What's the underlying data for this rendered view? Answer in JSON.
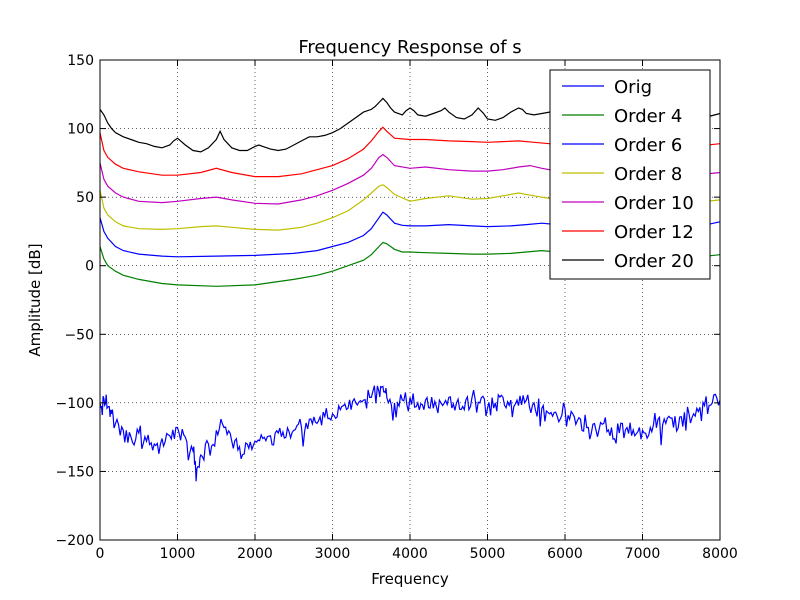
{
  "chart_data": {
    "type": "line",
    "title": "Frequency Response of s",
    "xlabel": "Frequency",
    "ylabel": "Amplitude [dB]",
    "xlim": [
      0,
      8000
    ],
    "ylim": [
      -200,
      150
    ],
    "xticks": [
      0,
      1000,
      2000,
      3000,
      4000,
      5000,
      6000,
      7000,
      8000
    ],
    "yticks": [
      -200,
      -150,
      -100,
      -50,
      0,
      50,
      100,
      150
    ],
    "grid": true,
    "legend_position": "top-right",
    "series": [
      {
        "name": "Orig",
        "color": "#0000ff",
        "noisy": true,
        "x": [
          0,
          50,
          100,
          150,
          200,
          300,
          400,
          500,
          600,
          700,
          800,
          900,
          1000,
          1100,
          1200,
          1250,
          1300,
          1400,
          1500,
          1600,
          1700,
          1800,
          1900,
          2000,
          2100,
          2200,
          2300,
          2400,
          2500,
          2600,
          2700,
          2800,
          2900,
          3000,
          3100,
          3200,
          3300,
          3400,
          3500,
          3600,
          3650,
          3700,
          3800,
          3900,
          4000,
          4100,
          4200,
          4300,
          4400,
          4500,
          4600,
          4700,
          4800,
          4900,
          5000,
          5100,
          5200,
          5300,
          5400,
          5500,
          5600,
          5700,
          5800,
          5900,
          6000,
          6100,
          6200,
          6300,
          6400,
          6500,
          6600,
          6700,
          6800,
          6900,
          7000,
          7100,
          7200,
          7300,
          7400,
          7500,
          7600,
          7700,
          7800,
          7900,
          8000
        ],
        "y": [
          -100,
          -97,
          -103,
          -108,
          -115,
          -120,
          -125,
          -122,
          -128,
          -130,
          -126,
          -124,
          -118,
          -125,
          -135,
          -148,
          -138,
          -130,
          -120,
          -118,
          -128,
          -132,
          -130,
          -128,
          -126,
          -124,
          -122,
          -125,
          -120,
          -118,
          -112,
          -115,
          -110,
          -108,
          -105,
          -104,
          -100,
          -98,
          -96,
          -92,
          -88,
          -96,
          -100,
          -98,
          -96,
          -100,
          -98,
          -104,
          -100,
          -96,
          -100,
          -105,
          -96,
          -100,
          -104,
          -100,
          -96,
          -98,
          -102,
          -98,
          -100,
          -104,
          -108,
          -110,
          -104,
          -108,
          -112,
          -118,
          -120,
          -115,
          -118,
          -122,
          -118,
          -124,
          -120,
          -118,
          -112,
          -115,
          -118,
          -110,
          -108,
          -104,
          -102,
          -100,
          -98
        ]
      },
      {
        "name": "Order 4",
        "color": "#008000",
        "x": [
          0,
          50,
          100,
          200,
          300,
          500,
          800,
          1000,
          1500,
          2000,
          2500,
          2800,
          3000,
          3200,
          3400,
          3500,
          3600,
          3650,
          3700,
          3800,
          3900,
          4000,
          4200,
          4500,
          4800,
          5000,
          5300,
          5500,
          5700,
          5900,
          6000,
          6500,
          7000,
          7500,
          8000
        ],
        "y": [
          14,
          5,
          0,
          -4,
          -7,
          -10,
          -13,
          -14,
          -15,
          -14,
          -10,
          -7,
          -4,
          0,
          4,
          8,
          14,
          17,
          16,
          12,
          10,
          10,
          9.5,
          9,
          8.5,
          8.5,
          9,
          10,
          11,
          10,
          9,
          6,
          4,
          5,
          8
        ]
      },
      {
        "name": "Order 6",
        "color": "#0000ff",
        "x": [
          0,
          50,
          100,
          200,
          300,
          500,
          800,
          1000,
          1500,
          2000,
          2500,
          2800,
          3000,
          3200,
          3400,
          3500,
          3600,
          3650,
          3700,
          3800,
          3900,
          4000,
          4200,
          4500,
          4800,
          5000,
          5300,
          5500,
          5700,
          5900,
          6000,
          6500,
          7000,
          7500,
          8000
        ],
        "y": [
          35,
          25,
          20,
          14,
          11,
          8.5,
          7,
          6.5,
          7,
          7.5,
          9,
          11,
          14,
          17,
          22,
          27,
          35,
          39,
          37,
          31,
          29.5,
          29,
          29,
          30,
          29,
          28.5,
          29,
          30,
          31,
          30,
          29,
          26,
          24,
          26,
          32
        ]
      },
      {
        "name": "Order 8",
        "color": "#bfbf00",
        "x": [
          0,
          50,
          100,
          200,
          300,
          500,
          800,
          1000,
          1300,
          1500,
          1700,
          2000,
          2300,
          2600,
          2800,
          3000,
          3200,
          3400,
          3500,
          3600,
          3650,
          3700,
          3800,
          4000,
          4200,
          4500,
          4800,
          5000,
          5200,
          5400,
          5600,
          5800,
          6000,
          6500,
          7000,
          7500,
          8000
        ],
        "y": [
          55,
          42,
          37,
          32,
          29,
          27,
          26.5,
          27,
          28.5,
          29,
          28,
          26.5,
          26,
          28,
          31,
          35,
          40,
          48,
          53,
          58,
          59,
          57,
          52,
          47,
          49,
          51,
          48.5,
          49,
          51,
          53,
          51,
          49,
          48,
          45,
          44,
          45,
          48
        ]
      },
      {
        "name": "Order 10",
        "color": "#bf00bf",
        "x": [
          0,
          50,
          100,
          200,
          300,
          500,
          800,
          1000,
          1300,
          1500,
          1700,
          2000,
          2300,
          2600,
          2800,
          3000,
          3200,
          3400,
          3500,
          3600,
          3650,
          3700,
          3800,
          4000,
          4200,
          4500,
          4800,
          5000,
          5200,
          5400,
          5550,
          5700,
          5900,
          6000,
          6500,
          7000,
          7500,
          8000
        ],
        "y": [
          75,
          63,
          58,
          53,
          50,
          47,
          46,
          47,
          49,
          50,
          48,
          45.5,
          45,
          48,
          51,
          55,
          60,
          66,
          71,
          79,
          81,
          79,
          73,
          71,
          72,
          70,
          69,
          69,
          70,
          72,
          73,
          71,
          69,
          68,
          66,
          64,
          65,
          68
        ]
      },
      {
        "name": "Order 12",
        "color": "#ff0000",
        "x": [
          0,
          50,
          100,
          200,
          300,
          500,
          800,
          1000,
          1300,
          1500,
          1700,
          2000,
          2300,
          2600,
          2800,
          3000,
          3200,
          3400,
          3500,
          3600,
          3650,
          3700,
          3800,
          4000,
          4200,
          4500,
          4800,
          5000,
          5200,
          5400,
          5600,
          5800,
          6000,
          6500,
          7000,
          7500,
          8000
        ],
        "y": [
          97,
          84,
          79,
          74,
          71,
          68.5,
          66,
          66,
          68,
          71,
          68,
          65,
          65,
          67,
          70,
          73,
          78,
          85,
          91,
          98,
          101,
          98,
          93,
          92,
          92,
          91,
          90.5,
          90,
          90.5,
          91,
          90,
          89,
          88,
          86,
          85,
          86,
          89
        ]
      },
      {
        "name": "Order 20",
        "color": "#000000",
        "x": [
          0,
          50,
          100,
          150,
          200,
          300,
          400,
          500,
          600,
          700,
          800,
          900,
          950,
          1000,
          1100,
          1200,
          1300,
          1400,
          1500,
          1550,
          1600,
          1700,
          1800,
          1900,
          2000,
          2050,
          2100,
          2200,
          2300,
          2400,
          2500,
          2600,
          2700,
          2800,
          2900,
          3000,
          3100,
          3200,
          3300,
          3400,
          3500,
          3550,
          3600,
          3650,
          3700,
          3750,
          3800,
          3900,
          3950,
          4000,
          4050,
          4100,
          4200,
          4300,
          4400,
          4450,
          4500,
          4600,
          4700,
          4800,
          4880,
          4950,
          5000,
          5100,
          5200,
          5300,
          5400,
          5450,
          5500,
          5600,
          5700,
          5800,
          5900,
          6000,
          6200,
          6400,
          6600,
          6800,
          7000,
          7200,
          7400,
          7600,
          7800,
          8000
        ],
        "y": [
          114,
          110,
          104,
          100,
          97,
          94,
          92,
          90,
          89,
          87,
          86,
          88,
          91,
          93,
          88,
          84,
          83,
          86,
          92,
          98,
          92,
          86,
          84,
          84,
          87,
          88,
          87,
          85,
          84,
          85,
          88,
          91,
          94,
          94,
          95,
          97,
          100,
          104,
          108,
          112,
          114,
          116,
          119,
          122,
          119,
          115,
          112,
          110,
          113,
          115,
          113,
          110,
          109,
          111,
          113,
          115,
          112,
          108,
          107,
          110,
          115,
          111,
          107,
          106,
          108,
          112,
          115,
          114,
          111,
          110,
          111,
          112,
          113,
          114,
          112,
          110,
          108,
          109,
          110,
          110,
          109,
          107,
          108,
          111
        ]
      }
    ]
  }
}
